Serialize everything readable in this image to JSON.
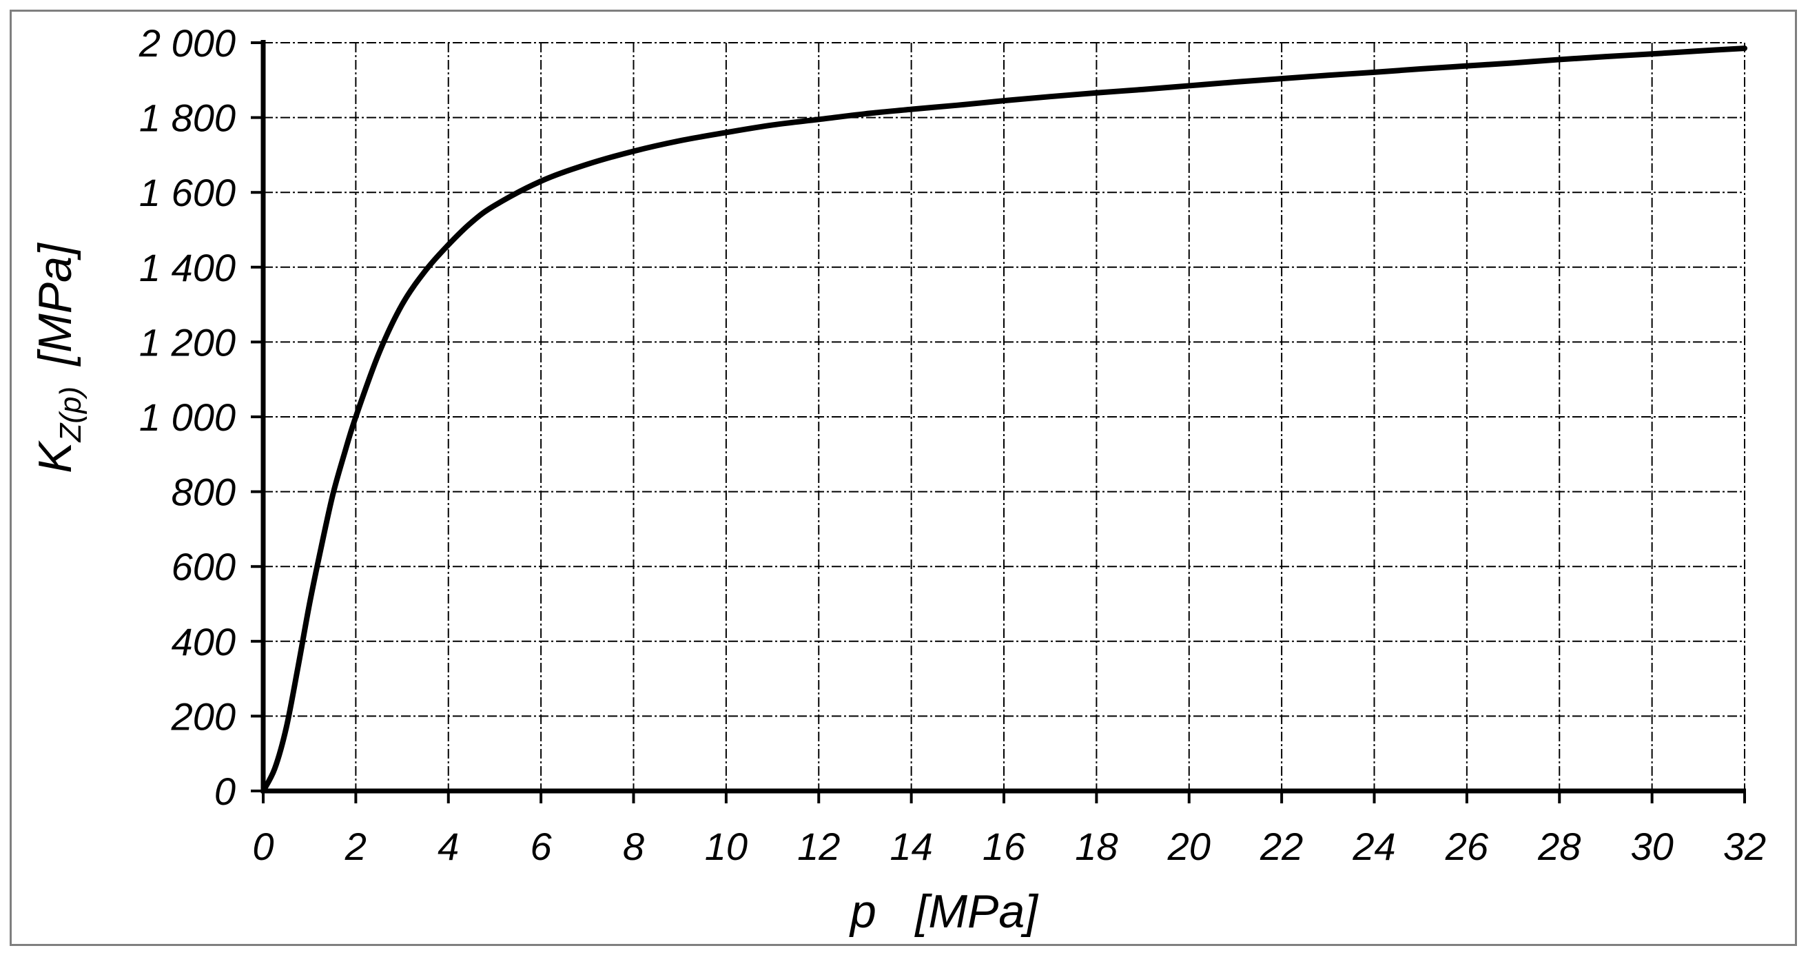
{
  "chart_data": {
    "type": "line",
    "title": "",
    "xlabel": "p   [MPa]",
    "ylabel": {
      "symbol": "K",
      "subscript": "Z(p)",
      "unit": "[MPa]"
    },
    "xlim": [
      0,
      32
    ],
    "ylim": [
      0,
      2000
    ],
    "x_ticks": [
      0,
      2,
      4,
      6,
      8,
      10,
      12,
      14,
      16,
      18,
      20,
      22,
      24,
      26,
      28,
      30,
      32
    ],
    "x_tick_labels": [
      "0",
      "2",
      "4",
      "6",
      "8",
      "10",
      "12",
      "14",
      "16",
      "18",
      "20",
      "22",
      "24",
      "26",
      "28",
      "30",
      "32"
    ],
    "y_ticks": [
      0,
      200,
      400,
      600,
      800,
      1000,
      1200,
      1400,
      1600,
      1800,
      2000
    ],
    "y_tick_labels": [
      "0",
      "200",
      "400",
      "600",
      "800",
      "1 000",
      "1 200",
      "1 400",
      "1 600",
      "1 800",
      "2 000"
    ],
    "grid": true,
    "series": [
      {
        "line_color": "#000000",
        "x": [
          0,
          0.25,
          0.5,
          0.75,
          1,
          1.25,
          1.5,
          1.75,
          2,
          2.5,
          3,
          3.5,
          4,
          4.5,
          5,
          6,
          7,
          8,
          9,
          10,
          11,
          12,
          13,
          14,
          15,
          16,
          17,
          18,
          19,
          20,
          21,
          22,
          23,
          24,
          25,
          26,
          27,
          28,
          29,
          30,
          31,
          32
        ],
        "y": [
          0,
          60,
          170,
          330,
          500,
          650,
          790,
          900,
          1000,
          1170,
          1300,
          1390,
          1460,
          1520,
          1565,
          1630,
          1675,
          1710,
          1738,
          1760,
          1780,
          1795,
          1810,
          1822,
          1833,
          1845,
          1856,
          1866,
          1875,
          1885,
          1895,
          1904,
          1913,
          1921,
          1930,
          1938,
          1946,
          1955,
          1963,
          1970,
          1978,
          1985
        ]
      }
    ]
  }
}
